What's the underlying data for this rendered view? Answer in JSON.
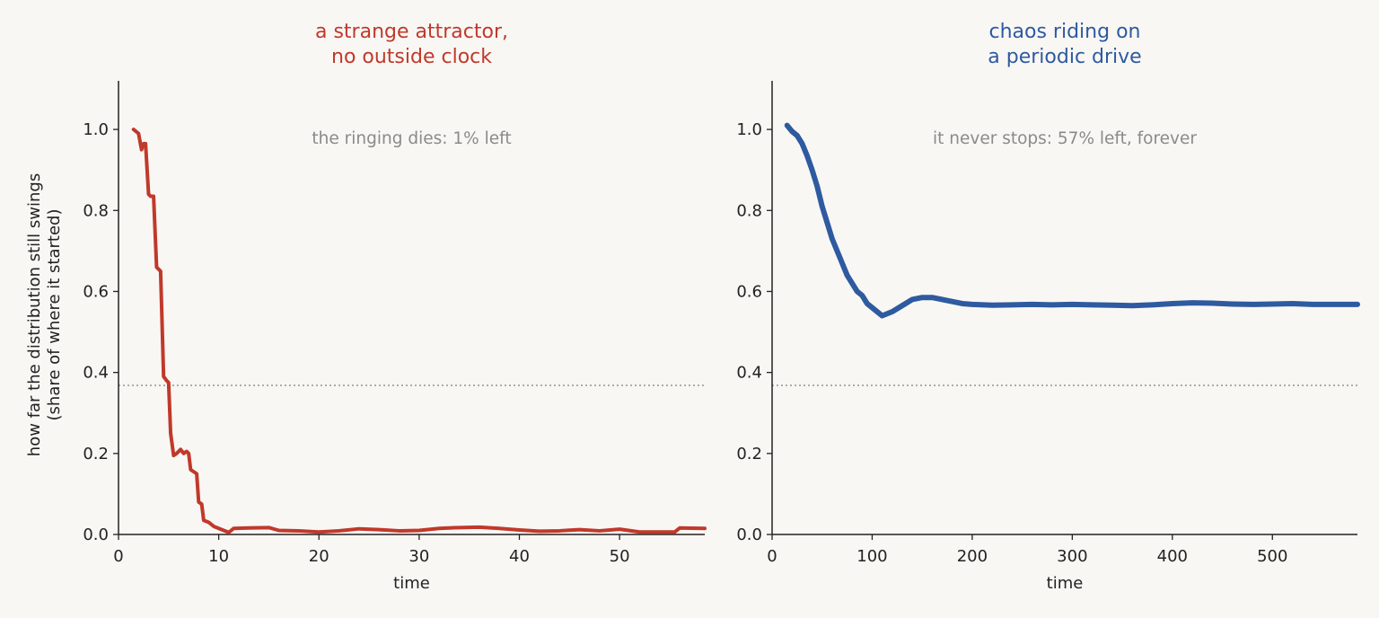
{
  "chart_data": [
    {
      "type": "line",
      "title": [
        "a strange attractor,",
        "no outside clock"
      ],
      "title_color": "#c0392b",
      "xlabel": "time",
      "ylabel": [
        "how far the distribution still swings",
        "(share of where it started)"
      ],
      "xlim": [
        0,
        58.5
      ],
      "ylim": [
        0,
        1.12
      ],
      "xticks": [
        "0",
        "10",
        "20",
        "30",
        "40",
        "50"
      ],
      "yticks": [
        "0.0",
        "0.2",
        "0.4",
        "0.6",
        "0.8",
        "1.0"
      ],
      "reference_line": 0.368,
      "annotation": "the ringing dies: 1% left",
      "series": [
        {
          "color": "#c0392b",
          "x": [
            1.5,
            2.0,
            2.3,
            2.5,
            2.7,
            3.0,
            3.2,
            3.5,
            3.8,
            4.0,
            4.2,
            4.5,
            4.8,
            5.0,
            5.2,
            5.5,
            5.8,
            6.0,
            6.2,
            6.5,
            6.8,
            7.0,
            7.2,
            7.5,
            7.8,
            8.0,
            8.3,
            8.5,
            9.0,
            9.5,
            10.0,
            11.0,
            11.5,
            13.0,
            15.0,
            16.0,
            18.0,
            20.0,
            22.0,
            24.0,
            26.0,
            28.0,
            30.0,
            32.0,
            34.0,
            36.0,
            38.0,
            40.0,
            42.0,
            44.0,
            46.0,
            48.0,
            50.0,
            52.0,
            54.0,
            55.5,
            56.0,
            58.5
          ],
          "y": [
            1.0,
            0.99,
            0.95,
            0.965,
            0.965,
            0.84,
            0.835,
            0.835,
            0.66,
            0.655,
            0.65,
            0.39,
            0.38,
            0.375,
            0.25,
            0.195,
            0.2,
            0.205,
            0.21,
            0.2,
            0.205,
            0.2,
            0.16,
            0.155,
            0.15,
            0.08,
            0.075,
            0.035,
            0.03,
            0.02,
            0.015,
            0.005,
            0.015,
            0.016,
            0.017,
            0.01,
            0.009,
            0.006,
            0.009,
            0.014,
            0.012,
            0.009,
            0.01,
            0.015,
            0.017,
            0.018,
            0.015,
            0.011,
            0.008,
            0.009,
            0.012,
            0.009,
            0.013,
            0.006,
            0.006,
            0.006,
            0.016,
            0.015
          ]
        }
      ]
    },
    {
      "type": "line",
      "title": [
        "chaos riding on",
        "a periodic drive"
      ],
      "title_color": "#2e5aa0",
      "xlabel": "time",
      "xlim": [
        0,
        585
      ],
      "ylim": [
        0,
        1.12
      ],
      "xticks": [
        "0",
        "100",
        "200",
        "300",
        "400",
        "500"
      ],
      "yticks": [
        "0.0",
        "0.2",
        "0.4",
        "0.6",
        "0.8",
        "1.0"
      ],
      "reference_line": 0.368,
      "annotation": "it never stops: 57% left, forever",
      "series": [
        {
          "color": "#2e5aa0",
          "x": [
            15,
            20,
            25,
            30,
            35,
            40,
            45,
            50,
            55,
            60,
            65,
            70,
            75,
            80,
            85,
            90,
            95,
            100,
            105,
            110,
            115,
            120,
            130,
            140,
            150,
            160,
            170,
            180,
            190,
            200,
            220,
            240,
            260,
            280,
            300,
            320,
            340,
            360,
            380,
            400,
            420,
            440,
            460,
            480,
            500,
            520,
            540,
            560,
            585
          ],
          "y": [
            1.01,
            0.995,
            0.985,
            0.965,
            0.935,
            0.9,
            0.86,
            0.81,
            0.77,
            0.73,
            0.7,
            0.67,
            0.64,
            0.62,
            0.6,
            0.59,
            0.57,
            0.56,
            0.55,
            0.54,
            0.545,
            0.55,
            0.565,
            0.58,
            0.585,
            0.585,
            0.58,
            0.575,
            0.57,
            0.568,
            0.566,
            0.567,
            0.568,
            0.567,
            0.568,
            0.567,
            0.566,
            0.565,
            0.567,
            0.57,
            0.572,
            0.571,
            0.569,
            0.568,
            0.569,
            0.57,
            0.568,
            0.568,
            0.568
          ]
        }
      ]
    }
  ]
}
